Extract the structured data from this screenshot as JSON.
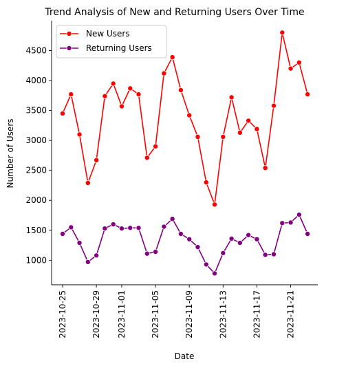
{
  "chart_data": {
    "type": "line",
    "title": "Trend Analysis of New and Returning Users Over Time",
    "xlabel": "Date",
    "ylabel": "Number of Users",
    "x": [
      "2023-10-25",
      "2023-10-26",
      "2023-10-27",
      "2023-10-28",
      "2023-10-29",
      "2023-10-30",
      "2023-10-31",
      "2023-11-01",
      "2023-11-02",
      "2023-11-03",
      "2023-11-04",
      "2023-11-05",
      "2023-11-06",
      "2023-11-07",
      "2023-11-08",
      "2023-11-09",
      "2023-11-10",
      "2023-11-11",
      "2023-11-12",
      "2023-11-13",
      "2023-11-14",
      "2023-11-15",
      "2023-11-16",
      "2023-11-17",
      "2023-11-18",
      "2023-11-19",
      "2023-11-20",
      "2023-11-21",
      "2023-11-22",
      "2023-11-23"
    ],
    "x_ticks": [
      "2023-10-25",
      "2023-10-29",
      "2023-11-01",
      "2023-11-05",
      "2023-11-09",
      "2023-11-13",
      "2023-11-17",
      "2023-11-21"
    ],
    "y_ticks": [
      1000,
      1500,
      2000,
      2500,
      3000,
      3500,
      4000,
      4500
    ],
    "ylim": [
      590,
      5000
    ],
    "grid": false,
    "legend_position": "upper left",
    "series": [
      {
        "name": "New Users",
        "color": "#ff0000",
        "values": [
          3450,
          3770,
          3100,
          2290,
          2670,
          3740,
          3950,
          3570,
          3870,
          3770,
          2710,
          2900,
          4120,
          4390,
          3840,
          3420,
          3060,
          2300,
          1930,
          3060,
          3720,
          3130,
          3330,
          3190,
          2540,
          3580,
          4800,
          4200,
          4300,
          3770
        ]
      },
      {
        "name": "Returning Users",
        "color": "#800080",
        "values": [
          1440,
          1550,
          1290,
          970,
          1080,
          1530,
          1600,
          1530,
          1540,
          1540,
          1110,
          1140,
          1560,
          1690,
          1440,
          1350,
          1220,
          930,
          780,
          1120,
          1360,
          1290,
          1420,
          1350,
          1090,
          1100,
          1620,
          1630,
          1760,
          1440
        ]
      }
    ]
  }
}
